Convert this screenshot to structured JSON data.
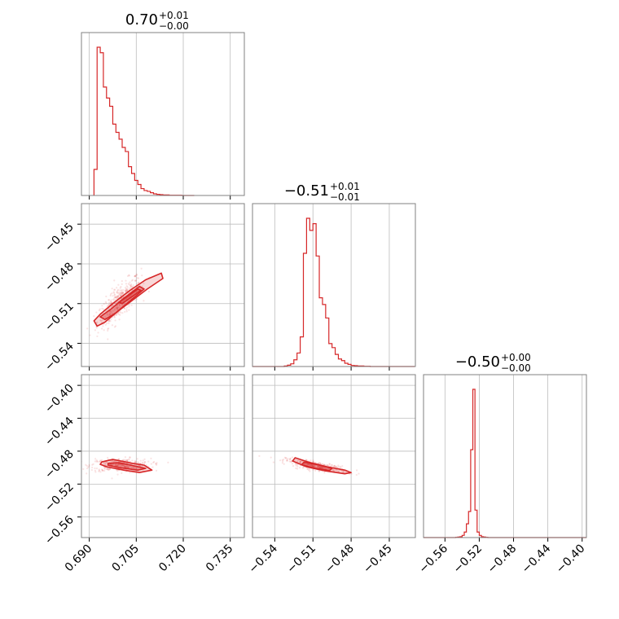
{
  "chart_data": {
    "type": "corner",
    "color": "#d62728",
    "parameters": [
      {
        "index": 0,
        "title": "0.70",
        "upper": "+0.01",
        "lower": "−0.00",
        "range": [
          0.6875,
          0.7395
        ],
        "ticks": [
          0.69,
          0.705,
          0.72,
          0.735
        ],
        "tick_labels": [
          "0.690",
          "0.705",
          "0.720",
          "0.735"
        ]
      },
      {
        "index": 1,
        "title": "−0.51",
        "upper": "+0.01",
        "lower": "−0.01",
        "range": [
          -0.5575,
          -0.4295
        ],
        "ticks": [
          -0.54,
          -0.51,
          -0.48,
          -0.45
        ],
        "tick_labels": [
          "−0.54",
          "−0.51",
          "−0.48",
          "−0.45"
        ]
      },
      {
        "index": 2,
        "title": "−0.50",
        "upper": "+0.00",
        "lower": "−0.00",
        "range": [
          -0.585,
          -0.395
        ],
        "ticks": [
          -0.56,
          -0.52,
          -0.48,
          -0.44,
          -0.4
        ],
        "tick_labels": [
          "−0.56",
          "−0.52",
          "−0.48",
          "−0.44",
          "−0.40"
        ]
      }
    ],
    "pair_ranges": {
      "1_0": {
        "y": [
          -0.5575,
          -0.4345
        ]
      },
      "2_0": {
        "y": [
          -0.585,
          -0.387
        ]
      },
      "2_1": {
        "y": [
          -0.585,
          -0.387
        ]
      }
    },
    "pair_ticks": {
      "1": {
        "ticks": [
          -0.54,
          -0.51,
          -0.48,
          -0.45
        ],
        "tick_labels": [
          "−0.54",
          "−0.51",
          "−0.48",
          "−0.45"
        ]
      },
      "2": {
        "ticks": [
          -0.56,
          -0.52,
          -0.48,
          -0.44,
          -0.4
        ],
        "tick_labels": [
          "−0.56",
          "−0.52",
          "−0.48",
          "−0.44",
          "−0.40"
        ]
      }
    },
    "histograms": [
      {
        "param": 0,
        "edges_start": 0.6915,
        "bin_width": 0.001,
        "counts": [
          95,
          540,
          520,
          395,
          355,
          325,
          260,
          230,
          205,
          175,
          160,
          105,
          80,
          55,
          40,
          25,
          18,
          15,
          10,
          6,
          4,
          3,
          2,
          2,
          1,
          1,
          1,
          1,
          0,
          0,
          0,
          0
        ]
      },
      {
        "param": 1,
        "edges_start": -0.5575,
        "bin_width": 0.0025,
        "counts": [
          0,
          0,
          0,
          0,
          0,
          0,
          0,
          0,
          0,
          0,
          2,
          5,
          10,
          25,
          50,
          110,
          420,
          550,
          505,
          530,
          410,
          255,
          230,
          180,
          85,
          70,
          45,
          28,
          22,
          12,
          8,
          4,
          3,
          2,
          2,
          1,
          1,
          0,
          0,
          0,
          0,
          0,
          0,
          0,
          0,
          0,
          0,
          0,
          0,
          0,
          0
        ]
      },
      {
        "param": 2,
        "edges_start": -0.585,
        "bin_width": 0.0025,
        "counts": [
          0,
          0,
          0,
          0,
          0,
          0,
          0,
          0,
          0,
          0,
          0,
          0,
          0,
          0,
          0,
          1,
          2,
          3,
          8,
          20,
          50,
          95,
          320,
          540,
          100,
          20,
          8,
          3,
          2,
          1,
          0,
          0,
          0,
          0,
          0,
          0,
          0,
          0,
          0,
          0,
          0,
          0,
          0,
          0,
          0,
          0,
          0,
          0,
          0,
          0,
          0,
          0,
          0,
          0,
          0,
          0,
          0,
          0,
          0,
          0,
          0,
          0,
          0,
          0,
          0,
          0,
          0,
          0,
          0,
          0,
          0,
          0,
          0,
          0,
          0,
          0
        ]
      }
    ],
    "pairs": [
      {
        "x_param": 0,
        "y_param": 1,
        "center": [
          0.6995,
          -0.509
        ],
        "scatter": {
          "ax": 0.0035,
          "ay": 0.0085,
          "tan": 0.011,
          "count": 420
        },
        "outer": [
          [
            0.6915,
            -0.523
          ],
          [
            0.6935,
            -0.518
          ],
          [
            0.6975,
            -0.51
          ],
          [
            0.703,
            -0.5
          ],
          [
            0.708,
            -0.492
          ],
          [
            0.713,
            -0.487
          ],
          [
            0.7135,
            -0.491
          ],
          [
            0.7085,
            -0.499
          ],
          [
            0.7035,
            -0.508
          ],
          [
            0.699,
            -0.516
          ],
          [
            0.695,
            -0.524
          ],
          [
            0.6925,
            -0.527
          ]
        ],
        "inner": [
          [
            0.6935,
            -0.52
          ],
          [
            0.697,
            -0.514
          ],
          [
            0.701,
            -0.506
          ],
          [
            0.706,
            -0.497
          ],
          [
            0.7075,
            -0.499
          ],
          [
            0.7025,
            -0.509
          ],
          [
            0.6985,
            -0.517
          ],
          [
            0.695,
            -0.522
          ]
        ],
        "inner2": [
          [
            0.6995,
            -0.509
          ],
          [
            0.7055,
            -0.499
          ],
          [
            0.7065,
            -0.5
          ],
          [
            0.7005,
            -0.51
          ]
        ]
      },
      {
        "x_param": 0,
        "y_param": 2,
        "center": [
          0.7,
          -0.497
        ],
        "scatter": {
          "ax": 0.0048,
          "ay": 0.004,
          "tan": 0.0,
          "count": 380
        },
        "outer": [
          [
            0.694,
            -0.493
          ],
          [
            0.6975,
            -0.49
          ],
          [
            0.704,
            -0.495
          ],
          [
            0.7075,
            -0.497
          ],
          [
            0.71,
            -0.503
          ],
          [
            0.706,
            -0.506
          ],
          [
            0.701,
            -0.503
          ],
          [
            0.6955,
            -0.499
          ],
          [
            0.6935,
            -0.496
          ]
        ],
        "inner": [
          [
            0.696,
            -0.495
          ],
          [
            0.6995,
            -0.494
          ],
          [
            0.7045,
            -0.498
          ],
          [
            0.708,
            -0.501
          ],
          [
            0.7055,
            -0.503
          ],
          [
            0.6995,
            -0.5
          ],
          [
            0.696,
            -0.497
          ]
        ]
      },
      {
        "x_param": 1,
        "y_param": 2,
        "center": [
          -0.507,
          -0.498
        ],
        "scatter": {
          "ax": 0.012,
          "ay": 0.0035,
          "tan": -0.12,
          "count": 380
        },
        "outer": [
          [
            -0.524,
            -0.488
          ],
          [
            -0.513,
            -0.4935
          ],
          [
            -0.499,
            -0.499
          ],
          [
            -0.485,
            -0.503
          ],
          [
            -0.48,
            -0.506
          ],
          [
            -0.485,
            -0.5075
          ],
          [
            -0.5,
            -0.504
          ],
          [
            -0.515,
            -0.499
          ],
          [
            -0.526,
            -0.492
          ]
        ],
        "inner": [
          [
            -0.517,
            -0.4935
          ],
          [
            -0.506,
            -0.4965
          ],
          [
            -0.495,
            -0.501
          ],
          [
            -0.497,
            -0.5035
          ],
          [
            -0.509,
            -0.5005
          ],
          [
            -0.519,
            -0.4965
          ]
        ]
      }
    ]
  }
}
